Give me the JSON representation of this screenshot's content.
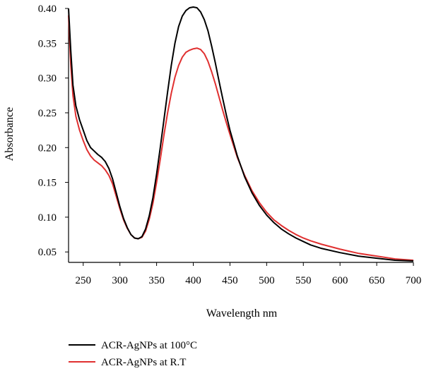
{
  "chart_data": {
    "type": "line",
    "title": "",
    "xlabel": "Wavelength nm",
    "ylabel": "Absorbance",
    "xlim": [
      230,
      700
    ],
    "ylim": [
      0.035,
      0.4
    ],
    "x_ticks": [
      250,
      300,
      350,
      400,
      450,
      500,
      550,
      600,
      650,
      700
    ],
    "x_tick_labels": [
      "250",
      "300",
      "350",
      "400",
      "450",
      "500",
      "550",
      "600",
      "650",
      "700"
    ],
    "y_ticks": [
      0.05,
      0.1,
      0.15,
      0.2,
      0.25,
      0.3,
      0.35,
      0.4
    ],
    "y_tick_labels": [
      "0.05",
      "0.10",
      "0.15",
      "0.20",
      "0.25",
      "0.30",
      "0.35",
      "0.40"
    ],
    "grid": false,
    "legend_position": "bottom-left",
    "series": [
      {
        "name": "ACR-AgNPs at 100°C",
        "color": "#000000",
        "points": [
          [
            230,
            0.4
          ],
          [
            233,
            0.34
          ],
          [
            236,
            0.29
          ],
          [
            240,
            0.26
          ],
          [
            245,
            0.24
          ],
          [
            250,
            0.225
          ],
          [
            255,
            0.21
          ],
          [
            260,
            0.2
          ],
          [
            265,
            0.195
          ],
          [
            270,
            0.19
          ],
          [
            275,
            0.186
          ],
          [
            280,
            0.18
          ],
          [
            285,
            0.17
          ],
          [
            290,
            0.155
          ],
          [
            295,
            0.135
          ],
          [
            300,
            0.115
          ],
          [
            305,
            0.098
          ],
          [
            310,
            0.085
          ],
          [
            315,
            0.075
          ],
          [
            320,
            0.07
          ],
          [
            325,
            0.069
          ],
          [
            330,
            0.072
          ],
          [
            335,
            0.083
          ],
          [
            340,
            0.102
          ],
          [
            345,
            0.128
          ],
          [
            350,
            0.162
          ],
          [
            355,
            0.2
          ],
          [
            360,
            0.24
          ],
          [
            365,
            0.28
          ],
          [
            370,
            0.318
          ],
          [
            375,
            0.35
          ],
          [
            380,
            0.374
          ],
          [
            385,
            0.389
          ],
          [
            390,
            0.397
          ],
          [
            395,
            0.401
          ],
          [
            400,
            0.402
          ],
          [
            405,
            0.401
          ],
          [
            410,
            0.395
          ],
          [
            415,
            0.384
          ],
          [
            420,
            0.368
          ],
          [
            425,
            0.346
          ],
          [
            430,
            0.322
          ],
          [
            435,
            0.296
          ],
          [
            440,
            0.271
          ],
          [
            445,
            0.247
          ],
          [
            450,
            0.225
          ],
          [
            460,
            0.188
          ],
          [
            470,
            0.158
          ],
          [
            480,
            0.135
          ],
          [
            490,
            0.117
          ],
          [
            500,
            0.103
          ],
          [
            510,
            0.092
          ],
          [
            520,
            0.083
          ],
          [
            530,
            0.076
          ],
          [
            540,
            0.07
          ],
          [
            550,
            0.065
          ],
          [
            560,
            0.06
          ],
          [
            575,
            0.055
          ],
          [
            600,
            0.049
          ],
          [
            625,
            0.044
          ],
          [
            650,
            0.041
          ],
          [
            675,
            0.038
          ],
          [
            700,
            0.037
          ]
        ]
      },
      {
        "name": "ACR-AgNPs at R.T",
        "color": "#e03030",
        "points": [
          [
            230,
            0.39
          ],
          [
            233,
            0.32
          ],
          [
            236,
            0.275
          ],
          [
            240,
            0.245
          ],
          [
            245,
            0.225
          ],
          [
            250,
            0.21
          ],
          [
            255,
            0.197
          ],
          [
            260,
            0.188
          ],
          [
            265,
            0.182
          ],
          [
            270,
            0.178
          ],
          [
            275,
            0.174
          ],
          [
            280,
            0.168
          ],
          [
            285,
            0.16
          ],
          [
            290,
            0.148
          ],
          [
            295,
            0.13
          ],
          [
            300,
            0.112
          ],
          [
            305,
            0.096
          ],
          [
            310,
            0.084
          ],
          [
            315,
            0.075
          ],
          [
            320,
            0.07
          ],
          [
            325,
            0.069
          ],
          [
            330,
            0.071
          ],
          [
            335,
            0.08
          ],
          [
            340,
            0.097
          ],
          [
            345,
            0.12
          ],
          [
            350,
            0.15
          ],
          [
            355,
            0.183
          ],
          [
            360,
            0.218
          ],
          [
            365,
            0.25
          ],
          [
            370,
            0.278
          ],
          [
            375,
            0.301
          ],
          [
            380,
            0.318
          ],
          [
            385,
            0.33
          ],
          [
            390,
            0.337
          ],
          [
            395,
            0.34
          ],
          [
            400,
            0.342
          ],
          [
            405,
            0.343
          ],
          [
            410,
            0.341
          ],
          [
            415,
            0.335
          ],
          [
            420,
            0.324
          ],
          [
            425,
            0.309
          ],
          [
            430,
            0.292
          ],
          [
            435,
            0.273
          ],
          [
            440,
            0.254
          ],
          [
            445,
            0.236
          ],
          [
            450,
            0.219
          ],
          [
            460,
            0.186
          ],
          [
            470,
            0.16
          ],
          [
            480,
            0.138
          ],
          [
            490,
            0.121
          ],
          [
            500,
            0.107
          ],
          [
            510,
            0.096
          ],
          [
            520,
            0.088
          ],
          [
            530,
            0.081
          ],
          [
            540,
            0.075
          ],
          [
            550,
            0.07
          ],
          [
            560,
            0.066
          ],
          [
            575,
            0.061
          ],
          [
            600,
            0.054
          ],
          [
            625,
            0.048
          ],
          [
            650,
            0.044
          ],
          [
            675,
            0.04
          ],
          [
            700,
            0.038
          ]
        ]
      }
    ]
  }
}
